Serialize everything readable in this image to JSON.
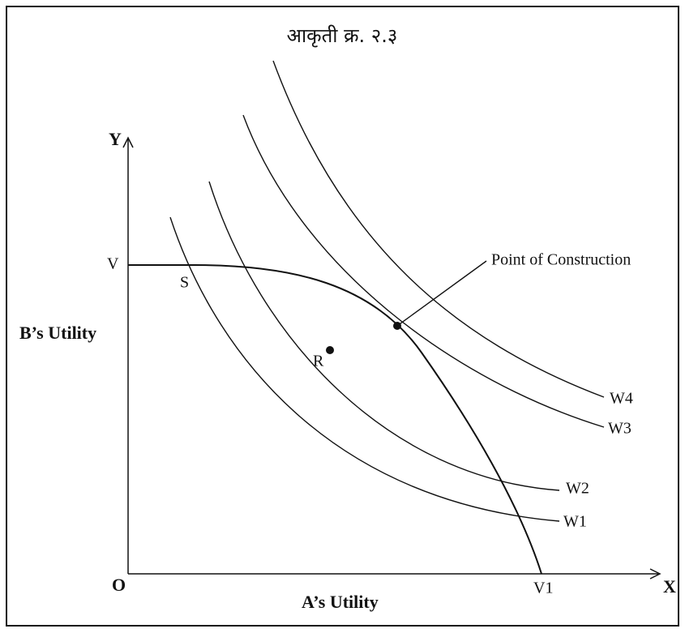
{
  "title": "आकृती क्र. २.३",
  "axes": {
    "y_label": "Y",
    "x_label": "X",
    "origin": "O",
    "y_title": "B’s Utility",
    "x_title": "A’s Utility"
  },
  "frontier": {
    "start_label": "V",
    "end_label": "V1"
  },
  "points": {
    "s": "S",
    "r": "R",
    "construction": "Point of Construction"
  },
  "curves": [
    "W1",
    "W2",
    "W3",
    "W4"
  ]
}
